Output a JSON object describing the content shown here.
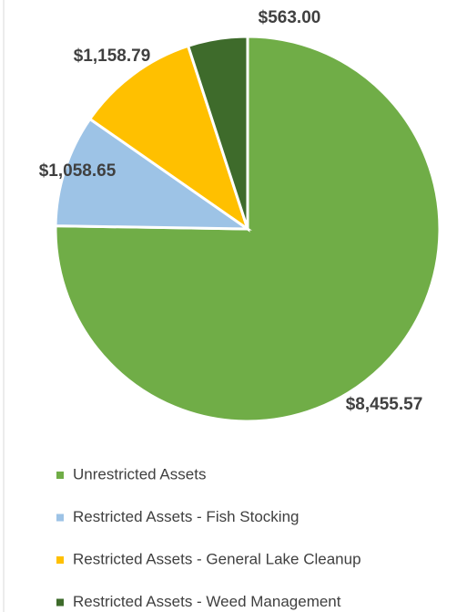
{
  "chart_data": {
    "type": "pie",
    "categories": [
      "Unrestricted Assets",
      "Restricted Assets - Fish Stocking",
      "Restricted Assets - General Lake Cleanup",
      "Restricted Assets - Weed Management"
    ],
    "values": [
      8455.57,
      1058.65,
      1158.79,
      563.0
    ],
    "value_labels": [
      "$8,455.57",
      "$1,058.65",
      "$1,158.79",
      "$563.00"
    ],
    "colors": [
      "#70ad47",
      "#9dc3e6",
      "#ffc000",
      "#3e6b2b"
    ],
    "legend": "bottom"
  }
}
